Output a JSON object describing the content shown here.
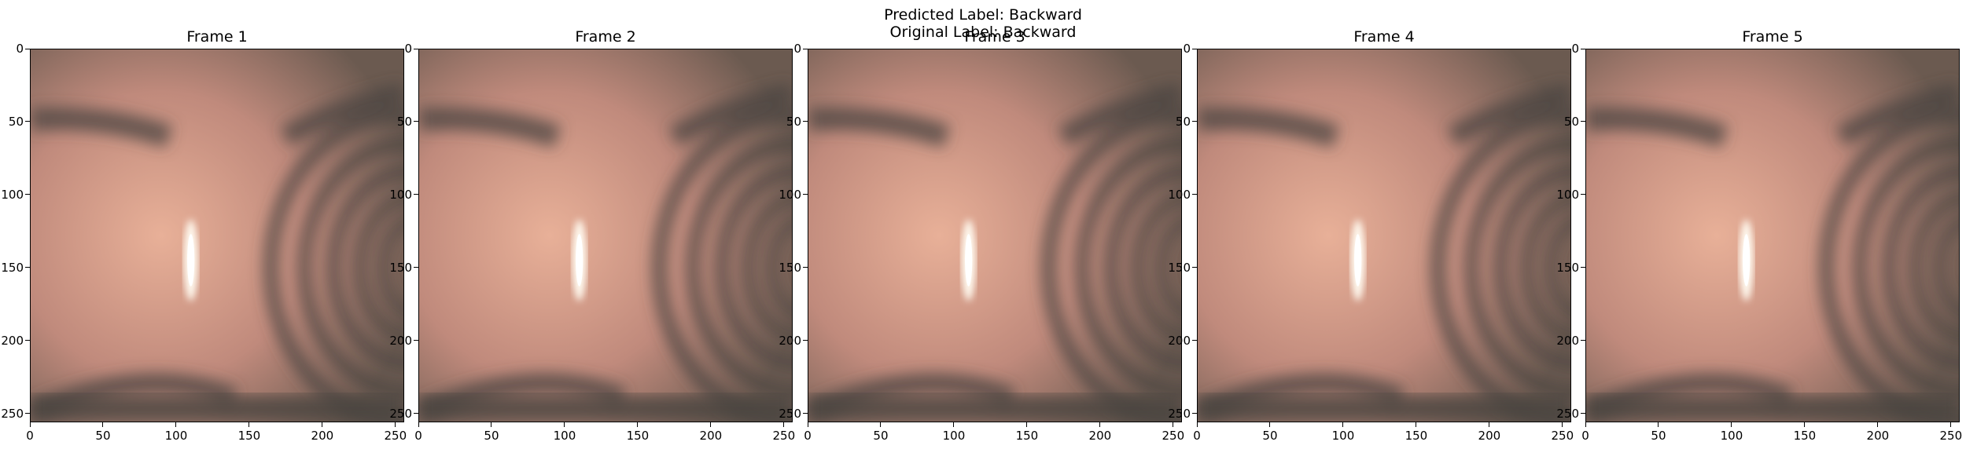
{
  "suptitle": {
    "predicted": "Predicted Label: Backward",
    "original": "Original Label: Backward"
  },
  "frames": [
    {
      "title": "Frame 1"
    },
    {
      "title": "Frame 2"
    },
    {
      "title": "Frame 3"
    },
    {
      "title": "Frame 4"
    },
    {
      "title": "Frame 5"
    }
  ],
  "axis": {
    "x_ticks": [
      "0",
      "50",
      "100",
      "150",
      "200",
      "250"
    ],
    "y_ticks": [
      "0",
      "50",
      "100",
      "150",
      "200",
      "250"
    ],
    "x_range": [
      0,
      256
    ],
    "y_range": [
      0,
      256
    ]
  },
  "colors": {
    "tissue_light": "#e8b098",
    "tissue_mid": "#c08a7c",
    "tissue_dark": "#4a4440",
    "highlight": "#fffaf0"
  }
}
